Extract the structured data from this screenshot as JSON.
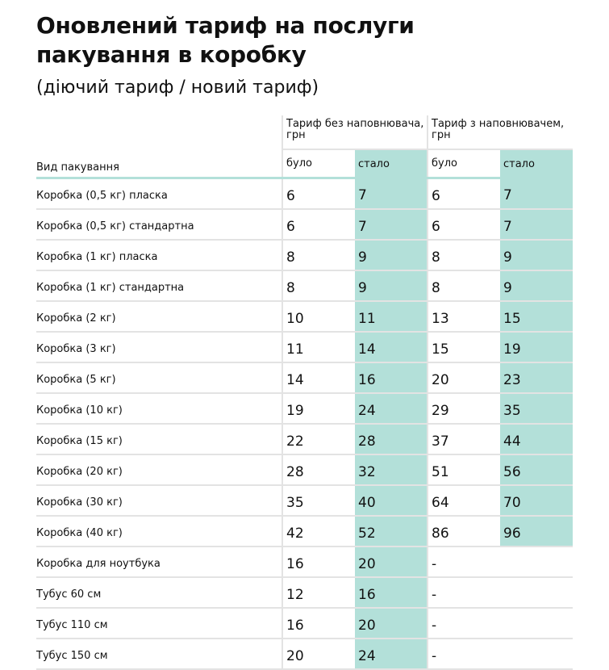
{
  "title_line1": "Оновлений тариф на послуги",
  "title_line2": "пакування в коробку",
  "subtitle": "(діючий тариф / новий тариф)",
  "colors": {
    "accent": "#b3e0d9",
    "grid": "#e3e3e3"
  },
  "table": {
    "label_header": "Вид пакування",
    "group1": "Тариф без наповнювача, грн",
    "group2": "Тариф з наповнювачем, грн",
    "sub_before": "було",
    "sub_after": "стало",
    "rows": [
      {
        "label": "Коробка (0,5 кг) пласка",
        "v": [
          "6",
          "7",
          "6",
          "7"
        ]
      },
      {
        "label": "Коробка (0,5 кг) стандартна",
        "v": [
          "6",
          "7",
          "6",
          "7"
        ]
      },
      {
        "label": "Коробка (1 кг) пласка",
        "v": [
          "8",
          "9",
          "8",
          "9"
        ]
      },
      {
        "label": "Коробка (1 кг) стандартна",
        "v": [
          "8",
          "9",
          "8",
          "9"
        ]
      },
      {
        "label": "Коробка (2 кг)",
        "v": [
          "10",
          "11",
          "13",
          "15"
        ]
      },
      {
        "label": "Коробка (3 кг)",
        "v": [
          "11",
          "14",
          "15",
          "19"
        ]
      },
      {
        "label": "Коробка (5 кг)",
        "v": [
          "14",
          "16",
          "20",
          "23"
        ]
      },
      {
        "label": "Коробка (10 кг)",
        "v": [
          "19",
          "24",
          "29",
          "35"
        ]
      },
      {
        "label": "Коробка (15 кг)",
        "v": [
          "22",
          "28",
          "37",
          "44"
        ]
      },
      {
        "label": "Коробка (20 кг)",
        "v": [
          "28",
          "32",
          "51",
          "56"
        ]
      },
      {
        "label": "Коробка (30 кг)",
        "v": [
          "35",
          "40",
          "64",
          "70"
        ]
      },
      {
        "label": "Коробка (40 кг)",
        "v": [
          "42",
          "52",
          "86",
          "96"
        ]
      },
      {
        "label": "Коробка для ноутбука",
        "v": [
          "16",
          "20",
          "-"
        ]
      },
      {
        "label": "Тубус 60 см",
        "v": [
          "12",
          "16",
          "-"
        ]
      },
      {
        "label": "Тубус 110 см",
        "v": [
          "16",
          "20",
          "-"
        ]
      },
      {
        "label": "Тубус 150 см",
        "v": [
          "20",
          "24",
          "-"
        ]
      }
    ]
  }
}
